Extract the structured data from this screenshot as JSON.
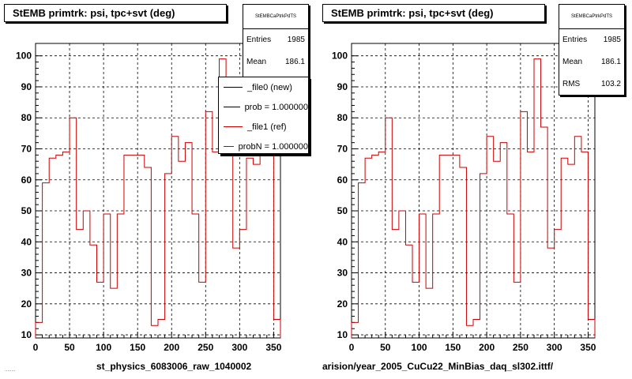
{
  "panels": [
    {
      "title": "StEMB primtrk: psi, tpc+svt (deg)",
      "stats": {
        "name": "StEMBCaPtrkPdTS",
        "entries_label": "Entries",
        "entries_value": "1985",
        "mean_label": "Mean",
        "mean_value": "186.1"
      },
      "legend": [
        {
          "label": "_file0 (new)",
          "color": "#000000"
        },
        {
          "label": "prob = 1.000000",
          "color": "#000000"
        },
        {
          "label": "_file1 (ref)",
          "color": "#cc0000"
        },
        {
          "label": "probN = 1.000000",
          "color": "#cc0000"
        }
      ],
      "footer": "st_physics_6083006_raw_1040002"
    },
    {
      "title": "StEMB primtrk: psi, tpc+svt (deg)",
      "stats": {
        "name": "StEMBCaPtrkPdTS",
        "entries_label": "Entries",
        "entries_value": "1985",
        "mean_label": "Mean",
        "mean_value": "186.1",
        "rms_label": "RMS",
        "rms_value": "103.2"
      },
      "footer": "arision/year_2005_CuCu22_MinBias_daq_sl302.ittf/"
    }
  ],
  "bottom_left_text": "........",
  "chart_data": [
    {
      "type": "histogram",
      "title": "StEMB primtrk: psi, tpc+svt (deg)",
      "xlim": [
        0,
        360
      ],
      "ylim": [
        9,
        104
      ],
      "x_ticks": [
        0,
        50,
        100,
        150,
        200,
        250,
        300,
        350
      ],
      "y_ticks": [
        10,
        20,
        30,
        40,
        50,
        60,
        70,
        80,
        90,
        100
      ],
      "grid": true,
      "bin_width": 10,
      "series": [
        {
          "color": "#cc0000",
          "values": [
            14,
            59,
            67,
            68,
            69,
            80,
            44,
            50,
            39,
            27,
            49,
            25,
            49,
            68,
            68,
            68,
            64,
            13,
            15,
            62,
            74,
            66,
            72,
            49,
            27,
            82,
            69,
            99,
            77,
            38,
            44,
            67,
            65,
            74,
            69,
            15
          ]
        }
      ]
    },
    {
      "type": "histogram",
      "title": "StEMB primtrk: psi, tpc+svt (deg)",
      "xlim": [
        0,
        360
      ],
      "ylim": [
        9,
        104
      ],
      "x_ticks": [
        0,
        50,
        100,
        150,
        200,
        250,
        300,
        350
      ],
      "y_ticks": [
        10,
        20,
        30,
        40,
        50,
        60,
        70,
        80,
        90,
        100
      ],
      "grid": true,
      "bin_width": 10,
      "series": [
        {
          "color": "#cc0000",
          "values": [
            14,
            59,
            67,
            68,
            69,
            80,
            44,
            50,
            39,
            27,
            49,
            25,
            49,
            68,
            68,
            68,
            64,
            13,
            15,
            62,
            74,
            66,
            72,
            49,
            27,
            82,
            69,
            99,
            77,
            38,
            44,
            67,
            65,
            74,
            69,
            15
          ]
        }
      ]
    }
  ]
}
